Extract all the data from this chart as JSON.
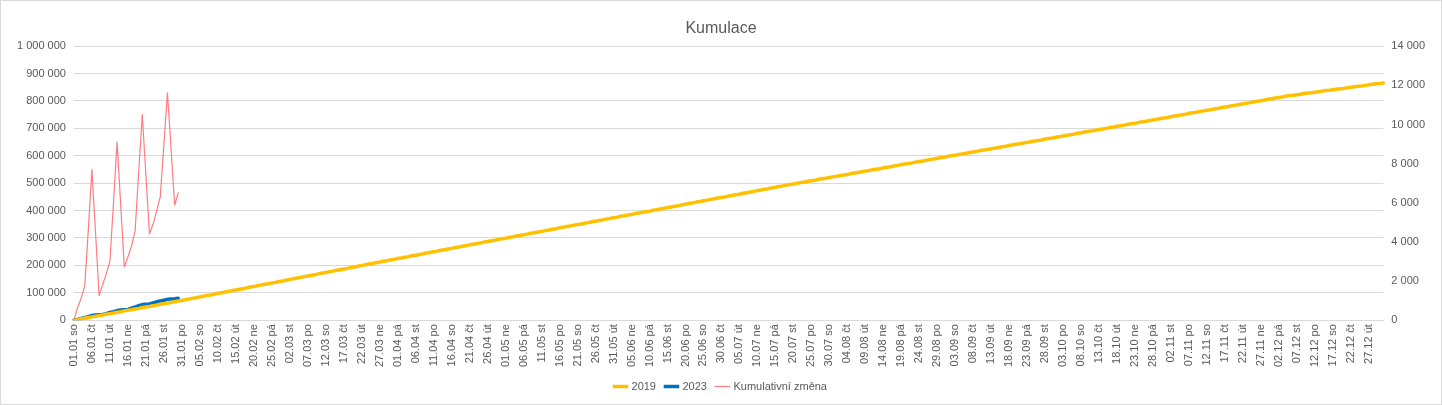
{
  "chart_data": {
    "type": "line",
    "title": "Kumulace",
    "categories": [
      "01.01 so",
      null,
      null,
      null,
      null,
      "06.01 čt",
      null,
      null,
      null,
      null,
      "11.01 út",
      null,
      null,
      null,
      null,
      "16.01 ne",
      null,
      null,
      null,
      null,
      "21.01 pá",
      null,
      null,
      null,
      null,
      "26.01 st",
      null,
      null,
      null,
      null,
      "31.01 po",
      null,
      null,
      null,
      null,
      "05.02 so",
      null,
      null,
      null,
      null,
      "10.02 čt",
      null,
      null,
      null,
      null,
      "15.02 út",
      null,
      null,
      null,
      null,
      "20.02 ne",
      null,
      null,
      null,
      null,
      "25.02 pá",
      null,
      null,
      null,
      null,
      "02.03 st",
      null,
      null,
      null,
      null,
      "07.03 po",
      null,
      null,
      null,
      null,
      "12.03 so",
      null,
      null,
      null,
      null,
      "17.03 čt",
      null,
      null,
      null,
      null,
      "22.03 út",
      null,
      null,
      null,
      null,
      "27.03 ne",
      null,
      null,
      null,
      null,
      "01.04 pá",
      null,
      null,
      null,
      null,
      "06.04 st",
      null,
      null,
      null,
      null,
      "11.04 po",
      null,
      null,
      null,
      null,
      "16.04 so",
      null,
      null,
      null,
      null,
      "21.04 čt",
      null,
      null,
      null,
      null,
      "26.04 út",
      null,
      null,
      null,
      null,
      "01.05 ne",
      null,
      null,
      null,
      null,
      "06.05 pá",
      null,
      null,
      null,
      null,
      "11.05 st",
      null,
      null,
      null,
      null,
      "16.05 po",
      null,
      null,
      null,
      null,
      "21.05 so",
      null,
      null,
      null,
      null,
      "26.05 čt",
      null,
      null,
      null,
      null,
      "31.05 út",
      null,
      null,
      null,
      null,
      "05.06 ne",
      null,
      null,
      null,
      null,
      "10.06 pá",
      null,
      null,
      null,
      null,
      "15.06 st",
      null,
      null,
      null,
      null,
      "20.06 po",
      null,
      null,
      null,
      null,
      "25.06 so",
      null,
      null,
      null,
      null,
      "30.06 čt",
      null,
      null,
      null,
      null,
      "05.07 út",
      null,
      null,
      null,
      null,
      "10.07 ne",
      null,
      null,
      null,
      null,
      "15.07 pá",
      null,
      null,
      null,
      null,
      "20.07 st",
      null,
      null,
      null,
      null,
      "25.07 po",
      null,
      null,
      null,
      null,
      "30.07 so",
      null,
      null,
      null,
      null,
      "04.08 čt",
      null,
      null,
      null,
      null,
      "09.08 út",
      null,
      null,
      null,
      null,
      "14.08 ne",
      null,
      null,
      null,
      null,
      "19.08 pá",
      null,
      null,
      null,
      null,
      "24.08 st",
      null,
      null,
      null,
      null,
      "29.08 po",
      null,
      null,
      null,
      null,
      "03.09 so",
      null,
      null,
      null,
      null,
      "08.09 čt",
      null,
      null,
      null,
      null,
      "13.09 út",
      null,
      null,
      null,
      null,
      "18.09 ne",
      null,
      null,
      null,
      null,
      "23.09 pá",
      null,
      null,
      null,
      null,
      "28.09 st",
      null,
      null,
      null,
      null,
      "03.10 po",
      null,
      null,
      null,
      null,
      "08.10 so",
      null,
      null,
      null,
      null,
      "13.10 čt",
      null,
      null,
      null,
      null,
      "18.10 út",
      null,
      null,
      null,
      null,
      "23.10 ne",
      null,
      null,
      null,
      null,
      "28.10 pá",
      null,
      null,
      null,
      null,
      "02.11 st",
      null,
      null,
      null,
      null,
      "07.11 po",
      null,
      null,
      null,
      null,
      "12.11 so",
      null,
      null,
      null,
      null,
      "17.11 čt",
      null,
      null,
      null,
      null,
      "22.11 út",
      null,
      null,
      null,
      null,
      "27.11 ne",
      null,
      null,
      null,
      null,
      "02.12 pá",
      null,
      null,
      null,
      null,
      "07.12 st",
      null,
      null,
      null,
      null,
      "12.12 po",
      null,
      null,
      null,
      null,
      "17.12 so",
      null,
      null,
      null,
      null,
      "22.12 čt",
      null,
      null,
      null,
      null,
      "27.12 út",
      null,
      null,
      null,
      null
    ],
    "series": [
      {
        "name": "2019",
        "color": "#ffc000",
        "values": [
          0,
          2000,
          5000,
          7000,
          10000,
          12000,
          14000,
          17000,
          19000,
          22000,
          24000,
          26000,
          29000,
          31000,
          34000,
          36000,
          38000,
          41000,
          43000,
          46000,
          48000,
          50000,
          53000,
          55000,
          58000,
          60000,
          62000,
          65000,
          67000,
          70000,
          72000,
          75000,
          77000,
          80000,
          82000,
          85000,
          87000,
          90000,
          92000,
          95000,
          98000,
          100000,
          103000,
          105000,
          108000,
          110000,
          113000,
          115000,
          118000,
          121000,
          123000,
          126000,
          128000,
          131000,
          133000,
          136000,
          138000,
          141000,
          143000,
          146000,
          149000,
          151000,
          154000,
          156000,
          159000,
          161000,
          164000,
          166000,
          169000,
          172000,
          174000,
          177000,
          179000,
          182000,
          184000,
          187000,
          189000,
          192000,
          194000,
          197000,
          200000,
          202000,
          205000,
          207000,
          210000,
          212000,
          215000,
          217000,
          220000,
          222000,
          225000,
          227000,
          230000,
          232000,
          235000,
          237000,
          240000,
          242000,
          245000,
          247000,
          250000,
          252000,
          255000,
          257000,
          260000,
          262000,
          265000,
          267000,
          270000,
          272000,
          275000,
          277000,
          280000,
          282000,
          285000,
          287000,
          290000,
          292000,
          295000,
          297000,
          299000,
          302000,
          304000,
          307000,
          309000,
          312000,
          314000,
          317000,
          319000,
          322000,
          324000,
          327000,
          329000,
          332000,
          334000,
          337000,
          339000,
          342000,
          344000,
          347000,
          349000,
          351000,
          354000,
          356000,
          359000,
          361000,
          364000,
          366000,
          369000,
          371000,
          374000,
          376000,
          379000,
          381000,
          384000,
          386000,
          389000,
          391000,
          394000,
          396000,
          398000,
          401000,
          403000,
          406000,
          408000,
          411000,
          413000,
          416000,
          418000,
          421000,
          423000,
          426000,
          428000,
          431000,
          433000,
          436000,
          438000,
          441000,
          443000,
          446000,
          448000,
          450000,
          453000,
          455000,
          458000,
          460000,
          463000,
          465000,
          468000,
          470000,
          473000,
          475000,
          478000,
          480000,
          483000,
          485000,
          488000,
          490000,
          493000,
          495000,
          497000,
          500000,
          502000,
          504000,
          507000,
          509000,
          511000,
          514000,
          516000,
          518000,
          521000,
          523000,
          525000,
          528000,
          530000,
          532000,
          535000,
          537000,
          539000,
          542000,
          544000,
          546000,
          549000,
          551000,
          553000,
          556000,
          558000,
          560000,
          563000,
          565000,
          568000,
          570000,
          572000,
          574000,
          577000,
          579000,
          581000,
          584000,
          586000,
          588000,
          591000,
          593000,
          595000,
          598000,
          600000,
          602000,
          605000,
          607000,
          609000,
          612000,
          614000,
          616000,
          619000,
          621000,
          623000,
          626000,
          628000,
          630000,
          633000,
          635000,
          638000,
          640000,
          642000,
          644000,
          647000,
          649000,
          651000,
          654000,
          656000,
          658000,
          661000,
          663000,
          665000,
          668000,
          670000,
          672000,
          675000,
          677000,
          679000,
          682000,
          684000,
          687000,
          689000,
          691000,
          693000,
          696000,
          698000,
          700000,
          703000,
          705000,
          708000,
          710000,
          712000,
          715000,
          717000,
          719000,
          722000,
          724000,
          726000,
          729000,
          731000,
          733000,
          736000,
          738000,
          740000,
          743000,
          745000,
          747000,
          750000,
          752000,
          755000,
          757000,
          759000,
          762000,
          764000,
          766000,
          768000,
          771000,
          773000,
          776000,
          778000,
          780000,
          783000,
          785000,
          787000,
          790000,
          792000,
          794000,
          797000,
          799000,
          801000,
          804000,
          806000,
          808000,
          811000,
          813000,
          815000,
          818000,
          820000,
          821000,
          823000,
          825000,
          827000,
          829000,
          830000,
          832000,
          834000,
          836000,
          838000,
          839000,
          841000,
          843000,
          845000,
          846000,
          848000,
          850000,
          852000,
          854000,
          855000,
          857000,
          859000,
          861000,
          863000,
          864000,
          866000
        ]
      },
      {
        "name": "2023",
        "color": "#0070c0",
        "values": [
          0,
          3000,
          6000,
          9000,
          13000,
          17000,
          19000,
          20000,
          21000,
          24000,
          28000,
          31000,
          35000,
          37000,
          38000,
          39000,
          44000,
          48000,
          53000,
          57000,
          58000,
          59000,
          63000,
          67000,
          70000,
          73000,
          76000,
          77000,
          78000,
          80000,
          null,
          null,
          null,
          null,
          null,
          null,
          null,
          null,
          null,
          null,
          null,
          null,
          null,
          null,
          null,
          null,
          null,
          null,
          null,
          null,
          null,
          null,
          null,
          null,
          null,
          null,
          null,
          null,
          null,
          null,
          null,
          null,
          null,
          null,
          null,
          null,
          null,
          null,
          null,
          null,
          null,
          null,
          null,
          null,
          null,
          null,
          null,
          null,
          null,
          null,
          null,
          null,
          null,
          null,
          null,
          null,
          null,
          null,
          null,
          null,
          null,
          null,
          null,
          null,
          null,
          null,
          null,
          null,
          null,
          null,
          null,
          null,
          null,
          null,
          null,
          null,
          null,
          null,
          null,
          null,
          null,
          null,
          null,
          null,
          null,
          null,
          null,
          null,
          null,
          null,
          null,
          null,
          null,
          null,
          null,
          null,
          null,
          null,
          null,
          null,
          null,
          null,
          null,
          null,
          null,
          null,
          null,
          null,
          null,
          null,
          null,
          null,
          null,
          null,
          null,
          null,
          null,
          null,
          null,
          null,
          null,
          null,
          null,
          null,
          null,
          null,
          null,
          null,
          null,
          null,
          null,
          null,
          null,
          null,
          null,
          null,
          null,
          null,
          null,
          null,
          null,
          null,
          null,
          null,
          null,
          null,
          null,
          null,
          null,
          null,
          null,
          null,
          null,
          null,
          null,
          null,
          null,
          null,
          null,
          null,
          null,
          null,
          null,
          null,
          null,
          null,
          null,
          null,
          null,
          null,
          null,
          null,
          null,
          null,
          null,
          null,
          null,
          null,
          null,
          null,
          null,
          null,
          null,
          null,
          null,
          null,
          null,
          null,
          null,
          null,
          null,
          null,
          null,
          null,
          null,
          null,
          null,
          null,
          null,
          null,
          null,
          null,
          null,
          null,
          null,
          null,
          null,
          null,
          null,
          null,
          null,
          null,
          null,
          null,
          null,
          null,
          null,
          null,
          null,
          null,
          null,
          null,
          null,
          null,
          null,
          null,
          null,
          null,
          null,
          null,
          null,
          null,
          null,
          null,
          null,
          null,
          null,
          null,
          null,
          null,
          null,
          null,
          null,
          null,
          null,
          null,
          null,
          null,
          null,
          null,
          null,
          null,
          null,
          null,
          null,
          null,
          null,
          null,
          null,
          null,
          null,
          null,
          null,
          null,
          null,
          null,
          null,
          null,
          null,
          null,
          null,
          null,
          null,
          null,
          null,
          null,
          null,
          null,
          null,
          null,
          null,
          null,
          null,
          null,
          null,
          null,
          null,
          null,
          null,
          null,
          null,
          null,
          null,
          null,
          null,
          null,
          null,
          null,
          null,
          null,
          null,
          null,
          null,
          null,
          null,
          null,
          null,
          null,
          null,
          null,
          null,
          null,
          null,
          null,
          null,
          null,
          null,
          null,
          null,
          null,
          null,
          null,
          null,
          null,
          null,
          null,
          null,
          null,
          null,
          null,
          null,
          null,
          null,
          null,
          null
        ]
      },
      {
        "name": "Kumulativní změna",
        "color": "#ff7c80",
        "axis": "y2",
        "values": [
          0,
          630,
          1120,
          1750,
          4620,
          7700,
          4480,
          1260,
          1820,
          2380,
          3010,
          6020,
          9100,
          5880,
          2730,
          3220,
          3780,
          4550,
          7560,
          10500,
          7420,
          4410,
          4900,
          5600,
          6300,
          8960,
          11620,
          8750,
          5880,
          6510,
          null,
          null,
          null,
          null,
          null,
          null,
          null,
          null,
          null,
          null,
          null,
          null,
          null,
          null,
          null,
          null,
          null,
          null,
          null,
          null,
          null,
          null,
          null,
          null,
          null,
          null,
          null,
          null,
          null,
          null,
          null,
          null,
          null,
          null,
          null,
          null,
          null,
          null,
          null,
          null,
          null,
          null,
          null,
          null,
          null,
          null,
          null,
          null,
          null,
          null,
          null,
          null,
          null,
          null,
          null,
          null,
          null,
          null,
          null,
          null,
          null,
          null,
          null,
          null,
          null,
          null,
          null,
          null,
          null,
          null,
          null,
          null,
          null,
          null,
          null,
          null,
          null,
          null,
          null,
          null,
          null,
          null,
          null,
          null,
          null,
          null,
          null,
          null,
          null,
          null,
          null,
          null,
          null,
          null,
          null,
          null,
          null,
          null,
          null,
          null,
          null,
          null,
          null,
          null,
          null,
          null,
          null,
          null,
          null,
          null,
          null,
          null,
          null,
          null,
          null,
          null,
          null,
          null,
          null,
          null,
          null,
          null,
          null,
          null,
          null,
          null,
          null,
          null,
          null,
          null,
          null,
          null,
          null,
          null,
          null,
          null,
          null,
          null,
          null,
          null,
          null,
          null,
          null,
          null,
          null,
          null,
          null,
          null,
          null,
          null,
          null,
          null,
          null,
          null,
          null,
          null,
          null,
          null,
          null,
          null,
          null,
          null,
          null,
          null,
          null,
          null,
          null,
          null,
          null,
          null,
          null,
          null,
          null,
          null,
          null,
          null,
          null,
          null,
          null,
          null,
          null,
          null,
          null,
          null,
          null,
          null,
          null,
          null,
          null,
          null,
          null,
          null,
          null,
          null,
          null,
          null,
          null,
          null,
          null,
          null,
          null,
          null,
          null,
          null,
          null,
          null,
          null,
          null,
          null,
          null,
          null,
          null,
          null,
          null,
          null,
          null,
          null,
          null,
          null,
          null,
          null,
          null,
          null,
          null,
          null,
          null,
          null,
          null,
          null,
          null,
          null,
          null,
          null,
          null,
          null,
          null,
          null,
          null,
          null,
          null,
          null,
          null,
          null,
          null,
          null,
          null,
          null,
          null,
          null,
          null,
          null,
          null,
          null,
          null,
          null,
          null,
          null,
          null,
          null,
          null,
          null,
          null,
          null,
          null,
          null,
          null,
          null,
          null,
          null,
          null,
          null,
          null,
          null,
          null,
          null,
          null,
          null,
          null,
          null,
          null,
          null,
          null,
          null,
          null,
          null,
          null,
          null,
          null,
          null,
          null,
          null,
          null,
          null,
          null,
          null,
          null,
          null,
          null,
          null,
          null,
          null,
          null,
          null,
          null,
          null,
          null,
          null,
          null,
          null,
          null,
          null,
          null,
          null,
          null,
          null,
          null,
          null,
          null,
          null,
          null,
          null,
          null,
          null,
          null,
          null,
          null,
          null,
          null,
          null,
          null,
          null,
          null,
          null,
          null,
          null
        ]
      }
    ],
    "ylim": [
      0,
      1000000
    ],
    "yticks": [
      0,
      {
        "value": 100000,
        "label": "100 000"
      },
      {
        "value": 200000,
        "label": "200 000"
      },
      {
        "value": 300000,
        "label": "300 000"
      },
      {
        "value": 400000,
        "label": "400 000"
      },
      {
        "value": 500000,
        "label": "500 000"
      },
      {
        "value": 600000,
        "label": "600 000"
      },
      {
        "value": 700000,
        "label": "700 000"
      },
      {
        "value": 800000,
        "label": "800 000"
      },
      {
        "value": 900000,
        "label": "900 000"
      },
      {
        "value": 1000000,
        "label": "1 000 000"
      }
    ],
    "y2lim": [
      0,
      14000
    ],
    "y2ticks": [
      0,
      {
        "value": 2000,
        "label": "2 000"
      },
      {
        "value": 4000,
        "label": "4 000"
      },
      {
        "value": 6000,
        "label": "6 000"
      },
      {
        "value": 8000,
        "label": "8 000"
      },
      {
        "value": 10000,
        "label": "10 000"
      },
      {
        "value": 12000,
        "label": "12 000"
      },
      {
        "value": 14000,
        "label": "14 000"
      }
    ],
    "grid": "y",
    "legend": "bottom",
    "marker": "none",
    "line_style": "solid"
  }
}
